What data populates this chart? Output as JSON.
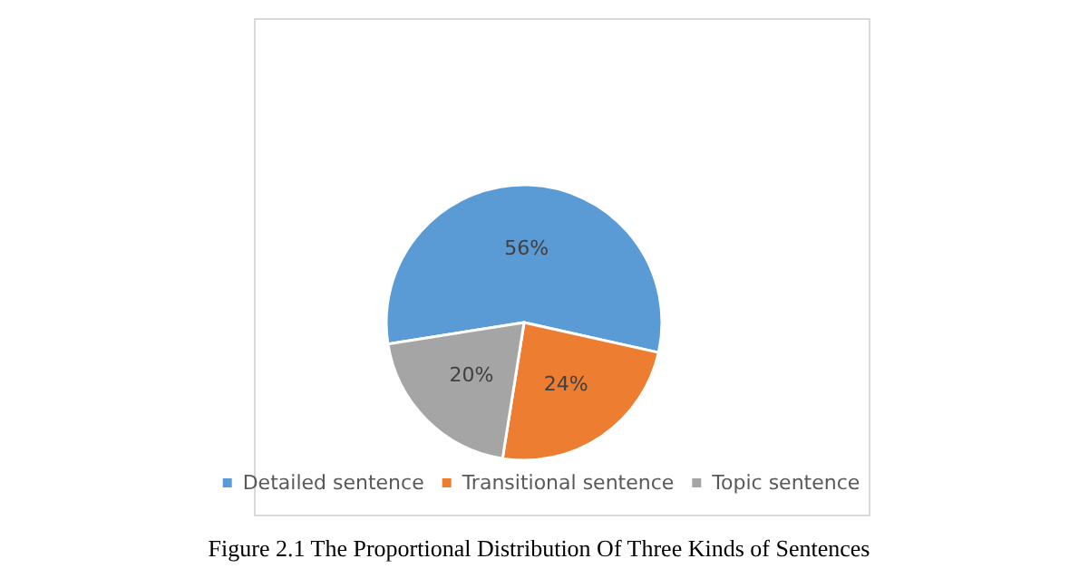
{
  "chart_data": {
    "type": "pie",
    "categories": [
      "Detailed sentence",
      "Transitional sentence",
      "Topic sentence"
    ],
    "values": [
      56,
      24,
      20
    ],
    "value_labels": [
      "56%",
      "24%",
      "20%"
    ],
    "colors": [
      "#5b9bd5",
      "#ed7d31",
      "#a5a5a5"
    ],
    "legend": "bottom",
    "annotations": [
      "Figure 2.1 The Proportional Distribution Of Three Kinds of Sentences"
    ]
  }
}
